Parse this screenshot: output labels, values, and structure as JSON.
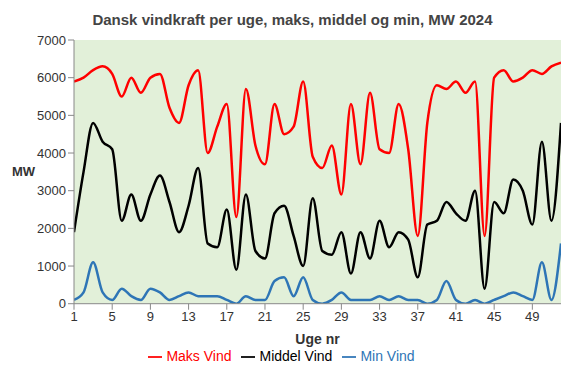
{
  "chart_data": {
    "type": "line",
    "title": "Dansk vindkraft per uge, maks, middel og min, MW 2024",
    "x_label": "Uge nr",
    "y_label": "MW",
    "x": [
      1,
      2,
      3,
      4,
      5,
      6,
      7,
      8,
      9,
      10,
      11,
      12,
      13,
      14,
      15,
      16,
      17,
      18,
      19,
      20,
      21,
      22,
      23,
      24,
      25,
      26,
      27,
      28,
      29,
      30,
      31,
      32,
      33,
      34,
      35,
      36,
      37,
      38,
      39,
      40,
      41,
      42,
      43,
      44,
      45,
      46,
      47,
      48,
      49,
      50,
      51,
      52
    ],
    "xlim": [
      1,
      52
    ],
    "xticks": [
      1,
      5,
      9,
      13,
      17,
      21,
      25,
      29,
      33,
      37,
      41,
      45,
      49
    ],
    "ylim": [
      0,
      7000
    ],
    "yticks": [
      0,
      1000,
      2000,
      3000,
      4000,
      5000,
      6000,
      7000
    ],
    "grid": false,
    "legend": "bottom",
    "line_style": "smooth",
    "marker": "none",
    "series": [
      {
        "name": "Middel Vind",
        "color": "#000000",
        "values": [
          1900,
          3500,
          4800,
          4300,
          4100,
          2200,
          2900,
          2200,
          2900,
          3400,
          2700,
          1900,
          2600,
          3600,
          1600,
          1500,
          2500,
          900,
          2900,
          1400,
          1200,
          2400,
          2600,
          1800,
          1000,
          2800,
          1400,
          1300,
          1900,
          800,
          1900,
          1200,
          2200,
          1500,
          1900,
          1700,
          700,
          2100,
          2200,
          2700,
          2400,
          2200,
          3000,
          400,
          2700,
          2400,
          3300,
          3000,
          2100,
          4300,
          2200,
          4800
        ]
      },
      {
        "name": "Maks Vind",
        "color": "#ff0000",
        "values": [
          5900,
          6000,
          6200,
          6300,
          6100,
          5500,
          6000,
          5600,
          6000,
          6100,
          5200,
          4800,
          5800,
          6200,
          4000,
          4700,
          5300,
          2300,
          5700,
          4200,
          3700,
          5300,
          4500,
          4700,
          5900,
          3900,
          3600,
          4200,
          2900,
          5300,
          3700,
          5600,
          4100,
          4000,
          5300,
          4100,
          1800,
          4800,
          5800,
          5700,
          5900,
          5600,
          5900,
          1800,
          6000,
          6200,
          5900,
          6000,
          6200,
          6100,
          6300,
          6400
        ]
      },
      {
        "name": "Min Vind",
        "color": "#2e75b6",
        "values": [
          100,
          300,
          1100,
          300,
          100,
          400,
          200,
          100,
          400,
          300,
          100,
          200,
          300,
          200,
          200,
          200,
          100,
          0,
          200,
          100,
          100,
          600,
          700,
          200,
          700,
          100,
          0,
          100,
          300,
          100,
          100,
          100,
          200,
          100,
          200,
          100,
          100,
          0,
          100,
          600,
          100,
          0,
          100,
          0,
          100,
          200,
          300,
          200,
          100,
          1100,
          100,
          1600
        ]
      }
    ]
  }
}
